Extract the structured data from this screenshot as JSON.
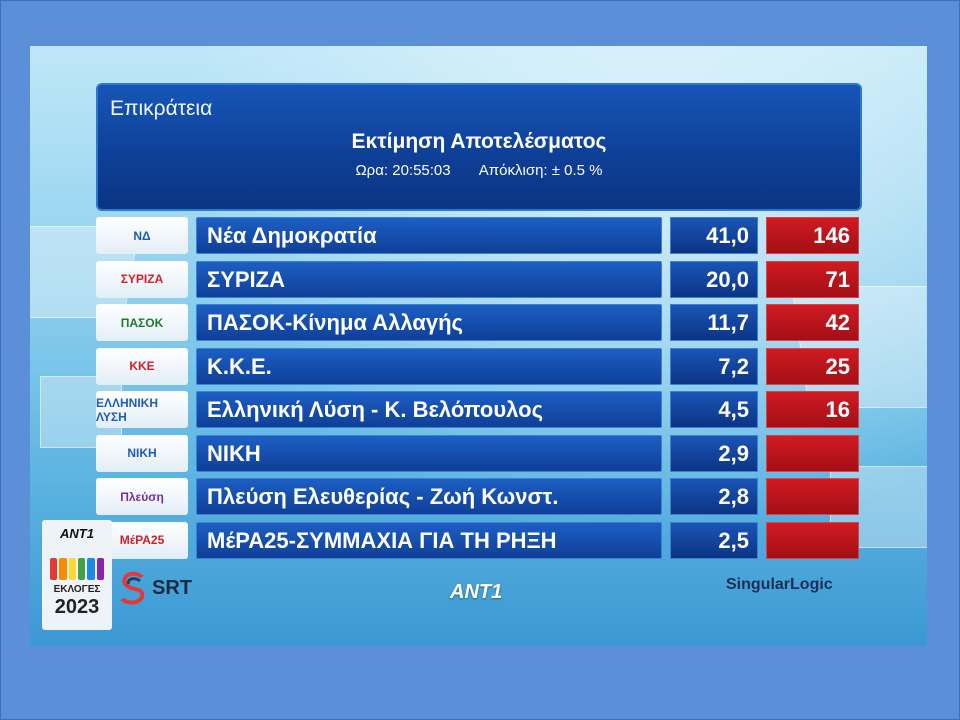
{
  "header": {
    "region": "Επικράτεια",
    "title": "Εκτίμηση Αποτελέσματος",
    "time_label": "Ωρα: 20:55:03",
    "margin_label": "Απόκλιση: ± 0.5 %"
  },
  "parties": [
    {
      "name": "Νέα Δημοκρατία",
      "percent": "41,0",
      "seats": "146",
      "logo": "ΝΔ",
      "logo_color": "#1f5bb8"
    },
    {
      "name": "ΣΥΡΙΖΑ",
      "percent": "20,0",
      "seats": "71",
      "logo": "ΣΥΡΙΖΑ",
      "logo_color": "#d0202a"
    },
    {
      "name": "ΠΑΣΟΚ-Κίνημα Αλλαγής",
      "percent": "11,7",
      "seats": "42",
      "logo": "ΠΑΣΟΚ",
      "logo_color": "#1f7a2e"
    },
    {
      "name": "Κ.Κ.Ε.",
      "percent": "7,2",
      "seats": "25",
      "logo": "ΚΚΕ",
      "logo_color": "#d0202a"
    },
    {
      "name": "Ελληνική Λύση - Κ. Βελόπουλος",
      "percent": "4,5",
      "seats": "16",
      "logo": "ΕΛΛΗΝΙΚΗ ΛΥΣΗ",
      "logo_color": "#1f5bb8"
    },
    {
      "name": "ΝΙΚΗ",
      "percent": "2,9",
      "seats": "",
      "logo": "ΝΙΚΗ",
      "logo_color": "#1f5bb8"
    },
    {
      "name": "Πλεύση Ελευθερίας - Ζωή Κωνστ.",
      "percent": "2,8",
      "seats": "",
      "logo": "Πλεύση",
      "logo_color": "#7a2fa0"
    },
    {
      "name": "ΜέΡΑ25-ΣΥΜΜΑΧΙΑ ΓΙΑ ΤΗ ΡΗΞΗ",
      "percent": "2,5",
      "seats": "",
      "logo": "ΜέΡΑ25",
      "logo_color": "#d0202a"
    }
  ],
  "footer": {
    "ant_small": "ANT1",
    "elections_label": "ΕΚΛΟΓΕΣ",
    "year": "2023",
    "srt": "SRT",
    "ant_center": "ANT1",
    "singular": "Singular",
    "logic": "Logic"
  }
}
